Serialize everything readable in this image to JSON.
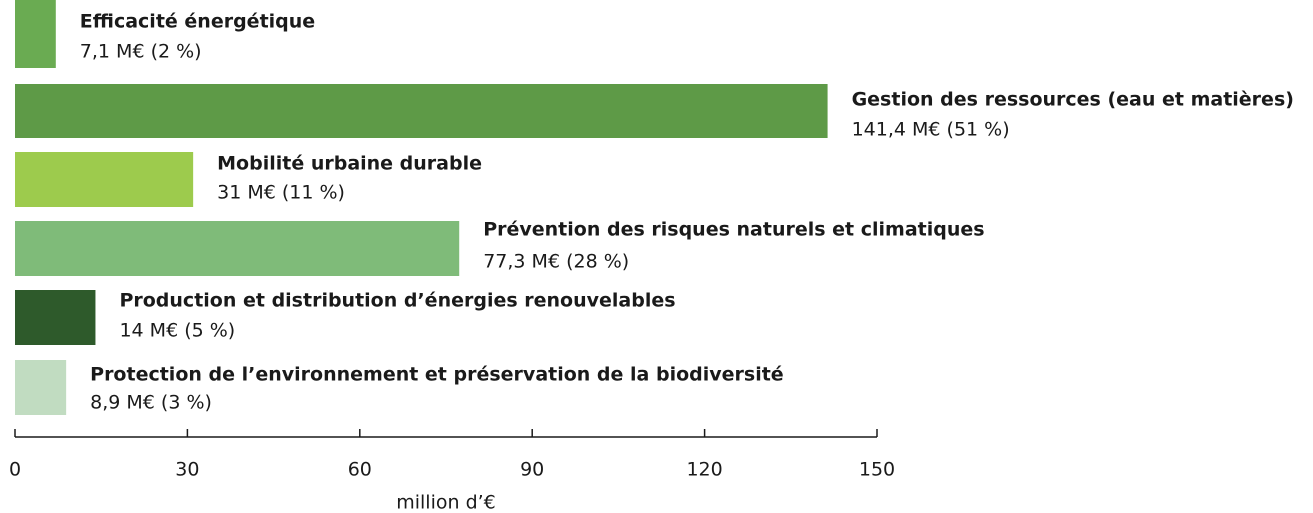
{
  "chart_data": {
    "type": "barh",
    "x_label": "million d’€",
    "categories": [
      "Efficacité énergétique",
      "Gestion des ressources (eau et matières)",
      "Mobilité urbaine durable",
      "Prévention des risques naturels et climatiques",
      "Production et distribution d’énergies renouvelables",
      "Protection de l’environnement et préservation de la biodiversité"
    ],
    "values": [
      7.1,
      141.4,
      31,
      77.3,
      14,
      8.9
    ],
    "value_labels": [
      "7,1 M€ (2 %)",
      "141,4 M€ (51 %)",
      "31 M€ (11 %)",
      "77,3 M€ (28 %)",
      "14 M€ (5 %)",
      "8,9 M€ (3 %)"
    ],
    "colors": [
      "#6aab52",
      "#5e9a47",
      "#9dcb4d",
      "#7fbb79",
      "#2e5a2b",
      "#c1dcc1"
    ],
    "xlim": [
      0,
      150
    ],
    "xticks": [
      0,
      30,
      60,
      90,
      120,
      150
    ]
  }
}
